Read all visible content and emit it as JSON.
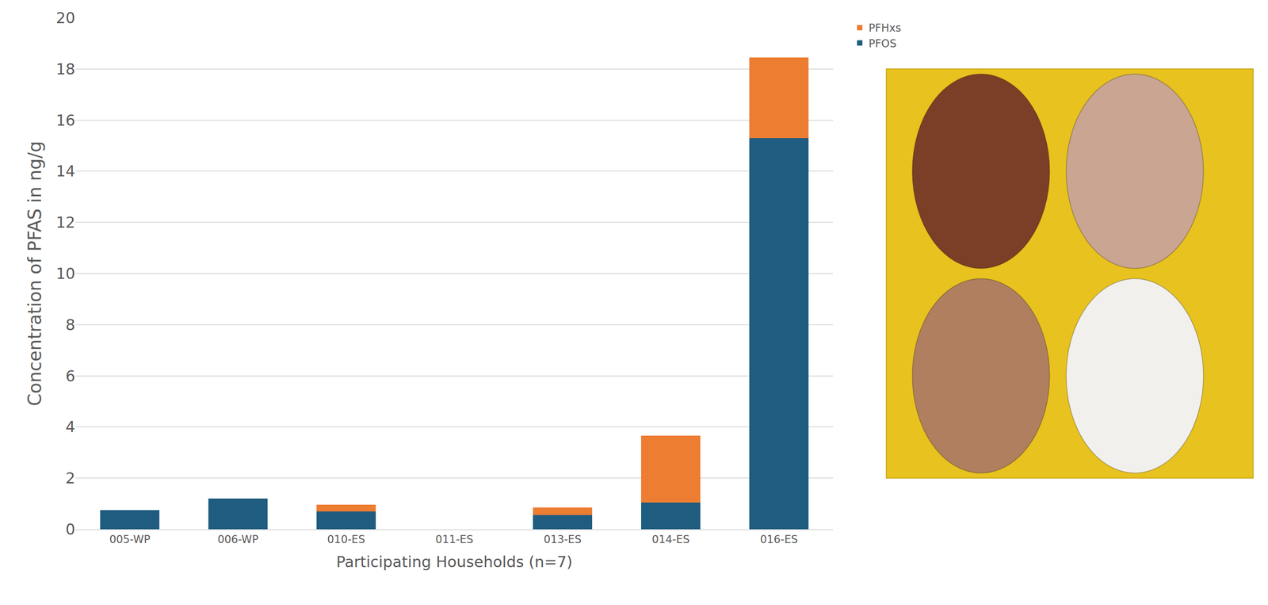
{
  "chart_data": {
    "type": "bar",
    "stacked": true,
    "x_label": "Participating Households (n=7)",
    "y_label": "Concentration of PFAS in ng/g",
    "categories": [
      "005-WP",
      "006-WP",
      "010-ES",
      "011-ES",
      "013-ES",
      "014-ES",
      "016-ES"
    ],
    "series": [
      {
        "name": "PFOS",
        "color": "#1f5c80",
        "values": [
          0.75,
          1.2,
          0.7,
          0,
          0.55,
          1.05,
          15.3
        ]
      },
      {
        "name": "PFHxs",
        "color": "#ed7d31",
        "values": [
          0,
          0,
          0.25,
          0,
          0.3,
          2.6,
          3.15
        ]
      }
    ],
    "ylim": [
      0,
      20
    ],
    "yticks": [
      0,
      2,
      4,
      6,
      8,
      10,
      12,
      14,
      16,
      18,
      20
    ],
    "grid": true,
    "legend": "top right"
  }
}
